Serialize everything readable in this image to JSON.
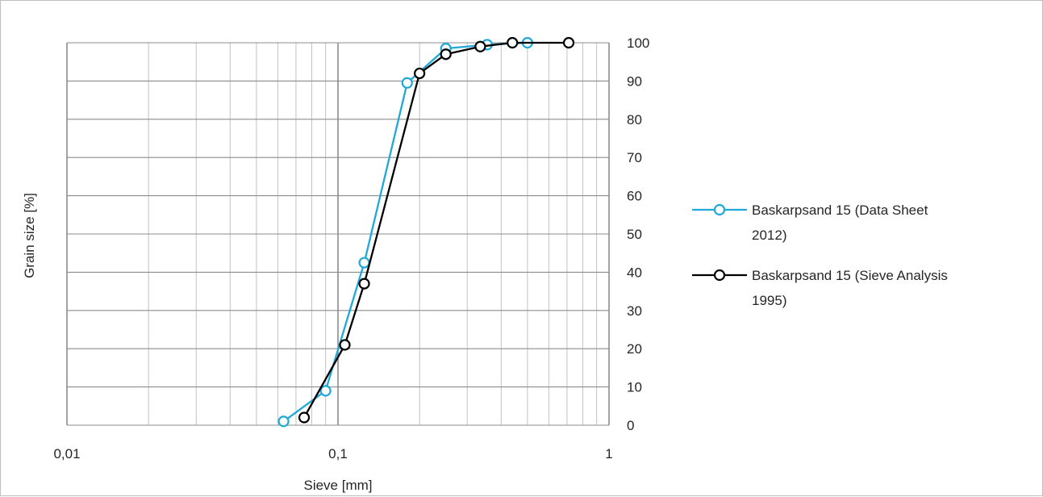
{
  "chart_data": {
    "type": "line",
    "xscale": "log",
    "xlim": [
      0.01,
      1
    ],
    "ylim": [
      0,
      100
    ],
    "xlabel": "Sieve [mm]",
    "ylabel": "Grain size [%]",
    "grid": true,
    "legend_position": "right",
    "x_tick_labels": [
      "0,01",
      "0,1",
      "1"
    ],
    "y_tick_labels": [
      "0",
      "10",
      "20",
      "30",
      "40",
      "50",
      "60",
      "70",
      "80",
      "90",
      "100"
    ],
    "series": [
      {
        "name_lines": [
          "Baskarpsand 15 (Data Sheet",
          "2012)"
        ],
        "color": "#1fa8d8",
        "x": [
          0.063,
          0.09,
          0.125,
          0.18,
          0.25,
          0.355,
          0.5
        ],
        "y": [
          1,
          9,
          42.5,
          89.5,
          98.5,
          99.5,
          100
        ]
      },
      {
        "name_lines": [
          "Baskarpsand 15 (Sieve Analysis",
          "1995)"
        ],
        "color": "#000000",
        "x": [
          0.075,
          0.106,
          0.125,
          0.2,
          0.25,
          0.335,
          0.44,
          0.71
        ],
        "y": [
          2,
          21,
          37,
          92,
          97,
          99,
          100,
          100
        ]
      }
    ]
  }
}
